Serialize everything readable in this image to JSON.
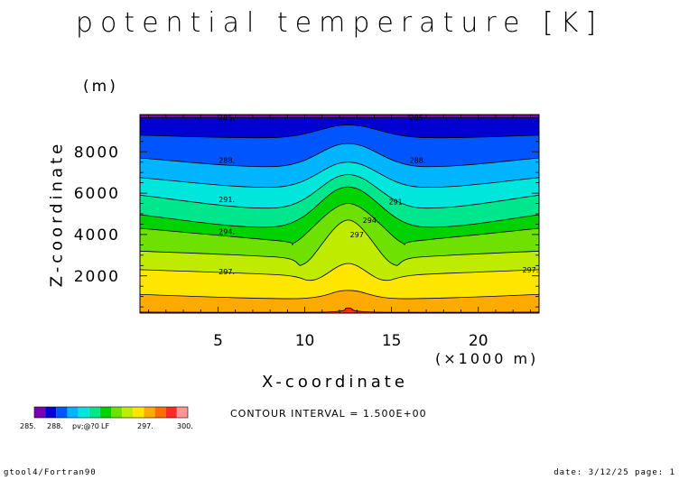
{
  "chart_data": {
    "type": "heatmap",
    "subtype": "filled-contour",
    "title": "potential temperature [K]",
    "xlabel": "X-coordinate",
    "x_unit": "(×1000 m)",
    "ylabel": "Z-coordinate",
    "y_unit": "(m)",
    "xlim": [
      0.5,
      23.5
    ],
    "ylim": [
      200,
      9800
    ],
    "x_ticks": [
      "5",
      "10",
      "15",
      "20"
    ],
    "y_ticks": [
      "2000",
      "4000",
      "6000",
      "8000"
    ],
    "contour_interval_text": "CONTOUR INTERVAL = 1.500E+00",
    "levels": [
      285,
      286.5,
      288,
      289.5,
      291,
      292.5,
      294,
      295.5,
      297,
      298.5,
      300
    ],
    "colors": [
      "#7b00b4",
      "#0000d2",
      "#0055ff",
      "#00b4ff",
      "#00e6dc",
      "#00e68c",
      "#00d200",
      "#6ee100",
      "#beeb00",
      "#ffe600",
      "#ffaa00",
      "#ff6e00",
      "#ff2a28",
      "#ff9696"
    ],
    "contour_lines": [
      {
        "level": 285,
        "x": [
          0.5,
          23.5
        ],
        "z": [
          9650,
          9650
        ]
      },
      {
        "level": 286.5,
        "x": [
          0.5,
          8.5,
          12.5,
          16.5,
          23.5
        ],
        "z": [
          8800,
          8700,
          9300,
          8700,
          8800
        ]
      },
      {
        "level": 288,
        "x": [
          0.5,
          8.5,
          12.5,
          16.5,
          23.5
        ],
        "z": [
          7700,
          7300,
          8400,
          7300,
          7700
        ]
      },
      {
        "level": 289.5,
        "x": [
          0.5,
          8.5,
          12.5,
          16.5,
          23.5
        ],
        "z": [
          6750,
          6300,
          7500,
          6300,
          6750
        ]
      },
      {
        "level": 291,
        "x": [
          0.5,
          8.5,
          12.5,
          16.5,
          23.5
        ],
        "z": [
          5900,
          5300,
          6900,
          5300,
          5900
        ]
      },
      {
        "level": 292.5,
        "x": [
          0.5,
          8.5,
          12.5,
          16.5,
          23.5
        ],
        "z": [
          4950,
          4400,
          6300,
          4400,
          4950
        ]
      },
      {
        "level": 294,
        "x": [
          0.5,
          8.5,
          9.5,
          12.5,
          15.5,
          16.5,
          23.5
        ],
        "z": [
          4300,
          3700,
          3650,
          5500,
          3650,
          3700,
          4300
        ]
      },
      {
        "level": 295.5,
        "x": [
          0.5,
          8.5,
          10,
          12.5,
          15,
          16.5,
          23.5
        ],
        "z": [
          3200,
          2900,
          2600,
          4700,
          2600,
          2900,
          3200
        ]
      },
      {
        "level": 297,
        "x": [
          0.5,
          8.5,
          10.5,
          12.5,
          14.5,
          16.5,
          23.5
        ],
        "z": [
          2300,
          2050,
          1800,
          2600,
          1800,
          2050,
          2300
        ]
      },
      {
        "level": 298.5,
        "x": [
          0.5,
          9.5,
          12.5,
          15.5,
          23.5
        ],
        "z": [
          1100,
          900,
          1300,
          900,
          1100
        ]
      },
      {
        "level": 300,
        "x": [
          0.5,
          11,
          12.5,
          14,
          23.5
        ],
        "z": [
          250,
          250,
          450,
          250,
          250
        ]
      }
    ],
    "contour_labels": [
      {
        "text": "285.",
        "x": 5.5,
        "z": 9650
      },
      {
        "text": "285.",
        "x": 16.5,
        "z": 9650
      },
      {
        "text": "288.",
        "x": 5.5,
        "z": 7600
      },
      {
        "text": "288.",
        "x": 16.5,
        "z": 7600
      },
      {
        "text": "291.",
        "x": 5.5,
        "z": 5700
      },
      {
        "text": "291.",
        "x": 15.3,
        "z": 5600
      },
      {
        "text": "294.",
        "x": 5.5,
        "z": 4150
      },
      {
        "text": "294.",
        "x": 13.8,
        "z": 4700
      },
      {
        "text": "297",
        "x": 13.0,
        "z": 4000
      },
      {
        "text": "297.",
        "x": 5.5,
        "z": 2200
      },
      {
        "text": "297.",
        "x": 23.0,
        "z": 2300
      }
    ],
    "colorbar": {
      "tick_labels": [
        "285.",
        "288.",
        "pv;@?0",
        "LF",
        "297.",
        "300."
      ]
    }
  },
  "footer": {
    "left": "gtool4/Fortran90",
    "right": "date: 3/12/25 page: 1"
  }
}
